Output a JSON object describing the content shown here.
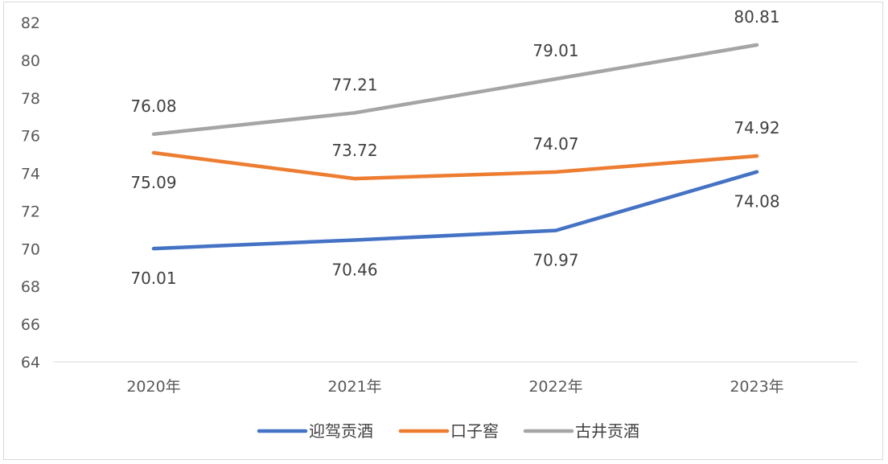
{
  "chart_data": {
    "type": "line",
    "title": "",
    "xlabel": "",
    "ylabel": "",
    "categories": [
      "2020年",
      "2021年",
      "2022年",
      "2023年"
    ],
    "ylim": [
      64,
      82
    ],
    "yticks": [
      64,
      66,
      68,
      70,
      72,
      74,
      76,
      78,
      80,
      82
    ],
    "ytick_labels": [
      "64",
      "66",
      "68",
      "70",
      "72",
      "74",
      "76",
      "78",
      "80",
      "82"
    ],
    "grid": false,
    "legend": "bottom",
    "series": [
      {
        "name": "迎驾贡酒",
        "color": "#4472c4",
        "values": [
          70.01,
          70.46,
          70.97,
          74.08
        ],
        "labels": [
          "70.01",
          "70.46",
          "70.97",
          "74.08"
        ],
        "label_position": "below"
      },
      {
        "name": "口子窖",
        "color": "#ed7d31",
        "values": [
          75.09,
          73.72,
          74.07,
          74.92
        ],
        "labels": [
          "75.09",
          "73.72",
          "74.07",
          "74.92"
        ],
        "label_position": "mixed"
      },
      {
        "name": "古井贡酒",
        "color": "#a5a5a5",
        "values": [
          76.08,
          77.21,
          79.01,
          80.81
        ],
        "labels": [
          "76.08",
          "77.21",
          "79.01",
          "80.81"
        ],
        "label_position": "above"
      }
    ]
  }
}
